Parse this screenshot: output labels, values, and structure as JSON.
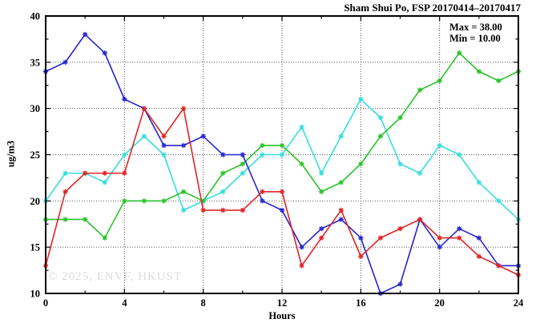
{
  "title": "Sham Shui Po, FSP 20170414–20170417",
  "annotation": {
    "max": "Max = 38.00",
    "min": "Min = 10.00"
  },
  "watermark": "© 2025, ENVF, HKUST",
  "axes": {
    "xlabel": "Hours",
    "ylabel": "ug/m3"
  },
  "chart_data": {
    "type": "line",
    "title": "Sham Shui Po, FSP 20170414–20170417",
    "xlabel": "Hours",
    "ylabel": "ug/m3",
    "xlim": [
      0,
      24
    ],
    "ylim": [
      10,
      40
    ],
    "x_major_ticks": [
      0,
      4,
      8,
      12,
      16,
      20,
      24
    ],
    "x_minor_step": 2,
    "y_major_ticks": [
      10,
      15,
      20,
      25,
      30,
      35,
      40
    ],
    "y_minor_step": 2.5,
    "grid": true,
    "grid_style": "dotted",
    "legend": "none",
    "marker": "asterisk",
    "annotations": [
      "Max = 38.00",
      "Min = 10.00"
    ],
    "x": [
      0,
      1,
      2,
      3,
      4,
      5,
      6,
      7,
      8,
      9,
      10,
      11,
      12,
      13,
      14,
      15,
      16,
      17,
      18,
      19,
      20,
      21,
      22,
      23,
      24
    ],
    "series": [
      {
        "name": "blue",
        "color": "#2626cf",
        "values": [
          34,
          35,
          38,
          36,
          31,
          30,
          26,
          26,
          27,
          25,
          25,
          20,
          19,
          15,
          17,
          18,
          16,
          10,
          11,
          18,
          15,
          17,
          16,
          13,
          13
        ]
      },
      {
        "name": "red",
        "color": "#e02424",
        "values": [
          13,
          21,
          23,
          23,
          23,
          30,
          27,
          30,
          19,
          19,
          19,
          21,
          21,
          13,
          16,
          19,
          14,
          16,
          17,
          18,
          16,
          16,
          14,
          13,
          12
        ]
      },
      {
        "name": "green",
        "color": "#28c428",
        "values": [
          18,
          18,
          18,
          16,
          20,
          20,
          20,
          21,
          20,
          23,
          24,
          26,
          26,
          24,
          21,
          22,
          24,
          27,
          29,
          32,
          33,
          36,
          34,
          33,
          34
        ]
      },
      {
        "name": "cyan",
        "color": "#35dede",
        "values": [
          20,
          23,
          23,
          22,
          25,
          27,
          25,
          19,
          20,
          21,
          23,
          25,
          25,
          28,
          23,
          27,
          31,
          29,
          24,
          23,
          26,
          25,
          22,
          20,
          18
        ]
      }
    ],
    "draw_order": [
      "cyan",
      "green",
      "blue",
      "red"
    ]
  }
}
